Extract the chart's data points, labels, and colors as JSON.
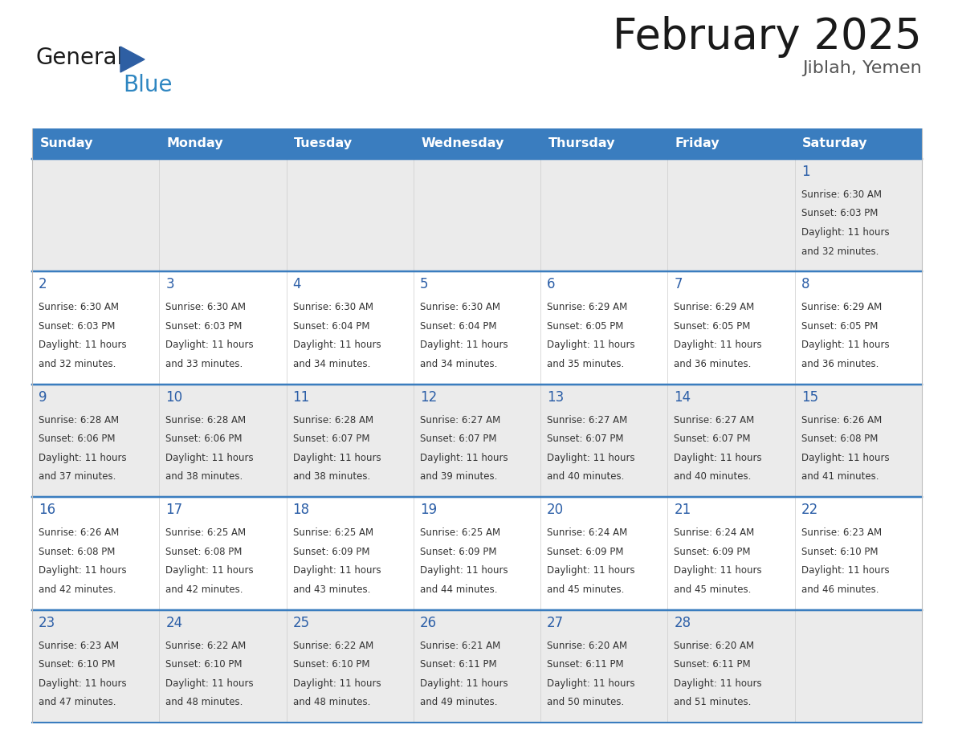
{
  "title": "February 2025",
  "subtitle": "Jiblah, Yemen",
  "days_of_week": [
    "Sunday",
    "Monday",
    "Tuesday",
    "Wednesday",
    "Thursday",
    "Friday",
    "Saturday"
  ],
  "header_bg": "#3A7DBF",
  "header_text": "#FFFFFF",
  "border_color": "#3A7DBF",
  "day_num_color": "#2B5EA7",
  "text_color": "#333333",
  "row_bg_odd": "#EBEBEB",
  "row_bg_even": "#FFFFFF",
  "calendar_data": [
    [
      null,
      null,
      null,
      null,
      null,
      null,
      {
        "day": 1,
        "sunrise": "6:30 AM",
        "sunset": "6:03 PM",
        "daylight": "11 hours and 32 minutes."
      }
    ],
    [
      {
        "day": 2,
        "sunrise": "6:30 AM",
        "sunset": "6:03 PM",
        "daylight": "11 hours and 32 minutes."
      },
      {
        "day": 3,
        "sunrise": "6:30 AM",
        "sunset": "6:03 PM",
        "daylight": "11 hours and 33 minutes."
      },
      {
        "day": 4,
        "sunrise": "6:30 AM",
        "sunset": "6:04 PM",
        "daylight": "11 hours and 34 minutes."
      },
      {
        "day": 5,
        "sunrise": "6:30 AM",
        "sunset": "6:04 PM",
        "daylight": "11 hours and 34 minutes."
      },
      {
        "day": 6,
        "sunrise": "6:29 AM",
        "sunset": "6:05 PM",
        "daylight": "11 hours and 35 minutes."
      },
      {
        "day": 7,
        "sunrise": "6:29 AM",
        "sunset": "6:05 PM",
        "daylight": "11 hours and 36 minutes."
      },
      {
        "day": 8,
        "sunrise": "6:29 AM",
        "sunset": "6:05 PM",
        "daylight": "11 hours and 36 minutes."
      }
    ],
    [
      {
        "day": 9,
        "sunrise": "6:28 AM",
        "sunset": "6:06 PM",
        "daylight": "11 hours and 37 minutes."
      },
      {
        "day": 10,
        "sunrise": "6:28 AM",
        "sunset": "6:06 PM",
        "daylight": "11 hours and 38 minutes."
      },
      {
        "day": 11,
        "sunrise": "6:28 AM",
        "sunset": "6:07 PM",
        "daylight": "11 hours and 38 minutes."
      },
      {
        "day": 12,
        "sunrise": "6:27 AM",
        "sunset": "6:07 PM",
        "daylight": "11 hours and 39 minutes."
      },
      {
        "day": 13,
        "sunrise": "6:27 AM",
        "sunset": "6:07 PM",
        "daylight": "11 hours and 40 minutes."
      },
      {
        "day": 14,
        "sunrise": "6:27 AM",
        "sunset": "6:07 PM",
        "daylight": "11 hours and 40 minutes."
      },
      {
        "day": 15,
        "sunrise": "6:26 AM",
        "sunset": "6:08 PM",
        "daylight": "11 hours and 41 minutes."
      }
    ],
    [
      {
        "day": 16,
        "sunrise": "6:26 AM",
        "sunset": "6:08 PM",
        "daylight": "11 hours and 42 minutes."
      },
      {
        "day": 17,
        "sunrise": "6:25 AM",
        "sunset": "6:08 PM",
        "daylight": "11 hours and 42 minutes."
      },
      {
        "day": 18,
        "sunrise": "6:25 AM",
        "sunset": "6:09 PM",
        "daylight": "11 hours and 43 minutes."
      },
      {
        "day": 19,
        "sunrise": "6:25 AM",
        "sunset": "6:09 PM",
        "daylight": "11 hours and 44 minutes."
      },
      {
        "day": 20,
        "sunrise": "6:24 AM",
        "sunset": "6:09 PM",
        "daylight": "11 hours and 45 minutes."
      },
      {
        "day": 21,
        "sunrise": "6:24 AM",
        "sunset": "6:09 PM",
        "daylight": "11 hours and 45 minutes."
      },
      {
        "day": 22,
        "sunrise": "6:23 AM",
        "sunset": "6:10 PM",
        "daylight": "11 hours and 46 minutes."
      }
    ],
    [
      {
        "day": 23,
        "sunrise": "6:23 AM",
        "sunset": "6:10 PM",
        "daylight": "11 hours and 47 minutes."
      },
      {
        "day": 24,
        "sunrise": "6:22 AM",
        "sunset": "6:10 PM",
        "daylight": "11 hours and 48 minutes."
      },
      {
        "day": 25,
        "sunrise": "6:22 AM",
        "sunset": "6:10 PM",
        "daylight": "11 hours and 48 minutes."
      },
      {
        "day": 26,
        "sunrise": "6:21 AM",
        "sunset": "6:11 PM",
        "daylight": "11 hours and 49 minutes."
      },
      {
        "day": 27,
        "sunrise": "6:20 AM",
        "sunset": "6:11 PM",
        "daylight": "11 hours and 50 minutes."
      },
      {
        "day": 28,
        "sunrise": "6:20 AM",
        "sunset": "6:11 PM",
        "daylight": "11 hours and 51 minutes."
      },
      null
    ]
  ],
  "logo_text1": "General",
  "logo_text2": "Blue",
  "logo_color1": "#1a1a1a",
  "logo_color2": "#2E86C1",
  "logo_triangle_color": "#2E5FA3",
  "fig_width": 11.88,
  "fig_height": 9.18,
  "dpi": 100
}
